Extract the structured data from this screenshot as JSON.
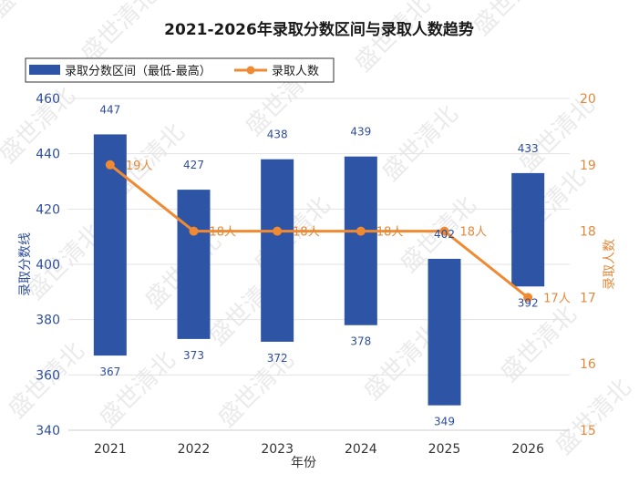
{
  "chart_data": {
    "type": "bar",
    "title": "2021-2026年录取分数区间与录取人数趋势",
    "xlabel": "年份",
    "ylabel": "录取分数线",
    "y2label": "录取人数",
    "categories": [
      "2021",
      "2022",
      "2023",
      "2024",
      "2025",
      "2026"
    ],
    "ylim": [
      340,
      460
    ],
    "yticks": [
      340,
      360,
      380,
      400,
      420,
      440,
      460
    ],
    "y2lim": [
      15,
      20
    ],
    "y2ticks": [
      15,
      16,
      17,
      18,
      19,
      20
    ],
    "series": [
      {
        "name": "录取分数区间（最低-最高）",
        "type": "floating-bar",
        "low": [
          367,
          373,
          372,
          378,
          349,
          392
        ],
        "high": [
          447,
          427,
          438,
          439,
          402,
          433
        ],
        "color": "#2e55a5"
      },
      {
        "name": "录取人数",
        "type": "line",
        "axis": "right",
        "values": [
          19,
          18,
          18,
          18,
          18,
          17
        ],
        "labels": [
          "19人",
          "18人",
          "18人",
          "18人",
          "18人",
          "17人"
        ],
        "color": "#ef8a32"
      }
    ],
    "grid": true,
    "legend_position": "top-left"
  },
  "watermark": "盛世清北"
}
